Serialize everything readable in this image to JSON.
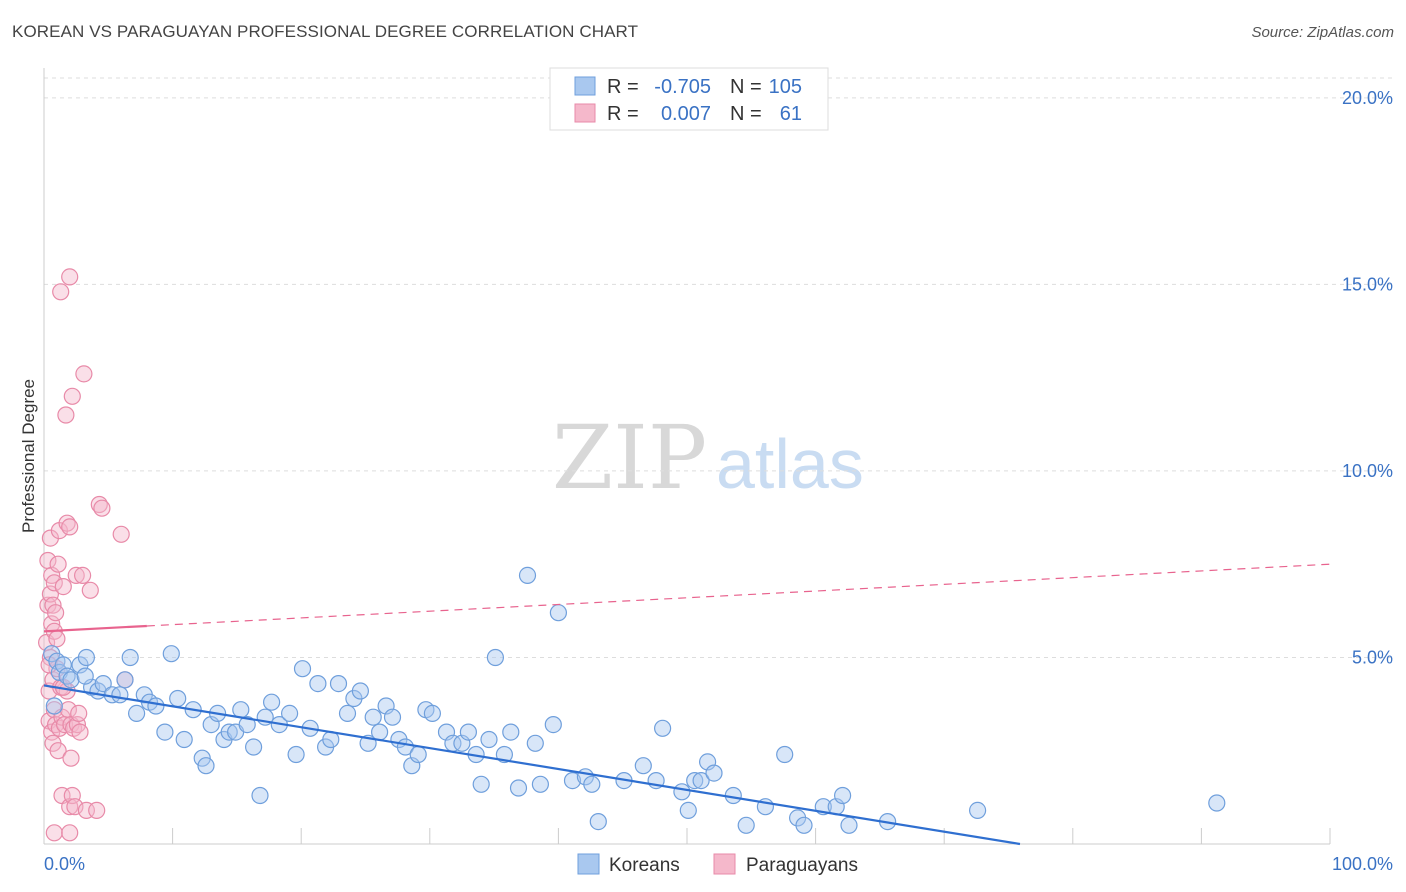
{
  "header": {
    "title": "KOREAN VS PARAGUAYAN PROFESSIONAL DEGREE CORRELATION CHART",
    "source": "Source: ZipAtlas.com"
  },
  "watermark": {
    "zip": "ZIP",
    "atlas": "atlas"
  },
  "colors": {
    "blue_fill": "#a9c8ef",
    "blue_stroke": "#6f9fdc",
    "blue_line": "#2f6fd0",
    "pink_fill": "#f5b8cb",
    "pink_stroke": "#e88aa8",
    "pink_line": "#e8638e",
    "label_blue": "#3a72c4"
  },
  "legend_top": {
    "rows": [
      {
        "r_label": "R =",
        "r_value": "-0.705",
        "n_label": "N =",
        "n_value": "105"
      },
      {
        "r_label": "R =",
        "r_value": "0.007",
        "n_label": "N =",
        "n_value": "61"
      }
    ]
  },
  "legend_bottom": {
    "items": [
      "Koreans",
      "Paraguayans"
    ]
  },
  "chart_data": {
    "type": "scatter",
    "title": "KOREAN VS PARAGUAYAN PROFESSIONAL DEGREE CORRELATION CHART",
    "xlabel": "",
    "ylabel": "Professional Degree",
    "xlim": [
      0,
      100
    ],
    "ylim": [
      0,
      20.8
    ],
    "x_tick_labels": [
      "0.0%",
      "100.0%"
    ],
    "y_ticks": [
      5,
      10,
      15,
      20
    ],
    "y_tick_labels": [
      "5.0%",
      "10.0%",
      "15.0%",
      "20.0%"
    ],
    "grid": true,
    "legend_position": "top-center",
    "series": [
      {
        "name": "Koreans",
        "r": -0.705,
        "n": 105,
        "trend": {
          "x0": 0,
          "y0": 4.25,
          "x1": 100,
          "y1": -1.35
        },
        "points": [
          [
            0.6,
            5.1
          ],
          [
            0.8,
            3.7
          ],
          [
            1.0,
            4.9
          ],
          [
            1.2,
            4.6
          ],
          [
            1.5,
            4.8
          ],
          [
            1.8,
            4.5
          ],
          [
            2.1,
            4.4
          ],
          [
            2.8,
            4.8
          ],
          [
            3.3,
            5.0
          ],
          [
            3.7,
            4.2
          ],
          [
            4.2,
            4.1
          ],
          [
            4.6,
            4.3
          ],
          [
            5.3,
            4.0
          ],
          [
            5.9,
            4.0
          ],
          [
            6.3,
            4.4
          ],
          [
            6.7,
            5.0
          ],
          [
            7.2,
            3.5
          ],
          [
            7.8,
            4.0
          ],
          [
            8.2,
            3.8
          ],
          [
            8.7,
            3.7
          ],
          [
            9.4,
            3.0
          ],
          [
            9.9,
            5.1
          ],
          [
            10.4,
            3.9
          ],
          [
            10.9,
            2.8
          ],
          [
            11.6,
            3.6
          ],
          [
            12.3,
            2.3
          ],
          [
            12.6,
            2.1
          ],
          [
            13.0,
            3.2
          ],
          [
            13.5,
            3.5
          ],
          [
            14.0,
            2.8
          ],
          [
            14.4,
            3.0
          ],
          [
            14.9,
            3.0
          ],
          [
            15.3,
            3.6
          ],
          [
            15.8,
            3.2
          ],
          [
            16.3,
            2.6
          ],
          [
            16.8,
            1.3
          ],
          [
            17.2,
            3.4
          ],
          [
            17.7,
            3.8
          ],
          [
            18.3,
            3.2
          ],
          [
            19.1,
            3.5
          ],
          [
            19.6,
            2.4
          ],
          [
            20.1,
            4.7
          ],
          [
            20.7,
            3.1
          ],
          [
            21.3,
            4.3
          ],
          [
            21.9,
            2.6
          ],
          [
            22.3,
            2.8
          ],
          [
            22.9,
            4.3
          ],
          [
            23.6,
            3.5
          ],
          [
            24.1,
            3.9
          ],
          [
            24.6,
            4.1
          ],
          [
            25.2,
            2.7
          ],
          [
            25.6,
            3.4
          ],
          [
            26.1,
            3.0
          ],
          [
            26.6,
            3.7
          ],
          [
            27.1,
            3.4
          ],
          [
            27.6,
            2.8
          ],
          [
            28.1,
            2.6
          ],
          [
            28.6,
            2.1
          ],
          [
            29.1,
            2.4
          ],
          [
            29.7,
            3.6
          ],
          [
            30.2,
            3.5
          ],
          [
            31.3,
            3.0
          ],
          [
            31.8,
            2.7
          ],
          [
            32.5,
            2.7
          ],
          [
            33.0,
            3.0
          ],
          [
            33.6,
            2.4
          ],
          [
            34.0,
            1.6
          ],
          [
            34.6,
            2.8
          ],
          [
            35.1,
            5.0
          ],
          [
            35.8,
            2.4
          ],
          [
            36.3,
            3.0
          ],
          [
            36.9,
            1.5
          ],
          [
            37.6,
            7.2
          ],
          [
            38.2,
            2.7
          ],
          [
            38.6,
            1.6
          ],
          [
            39.6,
            3.2
          ],
          [
            40.0,
            6.2
          ],
          [
            41.1,
            1.7
          ],
          [
            42.1,
            1.8
          ],
          [
            42.6,
            1.6
          ],
          [
            43.1,
            0.6
          ],
          [
            45.1,
            1.7
          ],
          [
            46.6,
            2.1
          ],
          [
            47.6,
            1.7
          ],
          [
            48.1,
            3.1
          ],
          [
            49.6,
            1.4
          ],
          [
            50.1,
            0.9
          ],
          [
            50.6,
            1.7
          ],
          [
            51.1,
            1.7
          ],
          [
            51.6,
            2.2
          ],
          [
            52.1,
            1.9
          ],
          [
            53.6,
            1.3
          ],
          [
            54.6,
            0.5
          ],
          [
            56.1,
            1.0
          ],
          [
            57.6,
            2.4
          ],
          [
            58.6,
            0.7
          ],
          [
            59.1,
            0.5
          ],
          [
            60.6,
            1.0
          ],
          [
            61.6,
            1.0
          ],
          [
            62.1,
            1.3
          ],
          [
            62.6,
            0.5
          ],
          [
            65.6,
            0.6
          ],
          [
            72.6,
            0.9
          ],
          [
            91.2,
            1.1
          ],
          [
            3.2,
            4.5
          ]
        ]
      },
      {
        "name": "Paraguayans",
        "r": 0.007,
        "n": 61,
        "trend": {
          "x0": 0,
          "y0": 5.7,
          "x1": 100,
          "y1": 7.5,
          "solid_until_x": 8.0
        },
        "points": [
          [
            0.2,
            5.4
          ],
          [
            0.3,
            6.4
          ],
          [
            0.3,
            7.6
          ],
          [
            0.4,
            3.3
          ],
          [
            0.4,
            4.1
          ],
          [
            0.5,
            5.0
          ],
          [
            0.5,
            6.7
          ],
          [
            0.5,
            8.2
          ],
          [
            0.6,
            3.0
          ],
          [
            0.6,
            5.9
          ],
          [
            0.6,
            7.2
          ],
          [
            0.7,
            2.7
          ],
          [
            0.7,
            4.4
          ],
          [
            0.7,
            6.4
          ],
          [
            0.8,
            3.6
          ],
          [
            0.8,
            5.7
          ],
          [
            0.8,
            7.0
          ],
          [
            0.9,
            3.2
          ],
          [
            0.9,
            6.2
          ],
          [
            1.0,
            4.7
          ],
          [
            1.0,
            5.5
          ],
          [
            1.1,
            2.5
          ],
          [
            1.1,
            7.5
          ],
          [
            1.2,
            3.1
          ],
          [
            1.2,
            8.4
          ],
          [
            1.3,
            4.2
          ],
          [
            1.3,
            14.8
          ],
          [
            1.4,
            3.4
          ],
          [
            1.4,
            1.3
          ],
          [
            1.5,
            6.9
          ],
          [
            1.6,
            3.2
          ],
          [
            1.7,
            11.5
          ],
          [
            1.8,
            4.1
          ],
          [
            1.8,
            8.6
          ],
          [
            1.9,
            3.6
          ],
          [
            2.0,
            1.0
          ],
          [
            2.0,
            8.5
          ],
          [
            2.1,
            3.2
          ],
          [
            2.1,
            2.3
          ],
          [
            2.2,
            12.0
          ],
          [
            2.2,
            1.3
          ],
          [
            2.3,
            3.1
          ],
          [
            2.4,
            1.0
          ],
          [
            2.5,
            7.2
          ],
          [
            2.6,
            3.2
          ],
          [
            2.7,
            3.5
          ],
          [
            2.8,
            3.0
          ],
          [
            3.0,
            7.2
          ],
          [
            3.1,
            12.6
          ],
          [
            3.3,
            0.9
          ],
          [
            3.6,
            6.8
          ],
          [
            4.1,
            0.9
          ],
          [
            4.3,
            9.1
          ],
          [
            4.5,
            9.0
          ],
          [
            6.0,
            8.3
          ],
          [
            6.3,
            4.4
          ],
          [
            2.0,
            15.2
          ],
          [
            0.8,
            0.3
          ],
          [
            1.5,
            4.2
          ],
          [
            2.0,
            0.3
          ],
          [
            0.4,
            4.8
          ]
        ]
      }
    ]
  }
}
